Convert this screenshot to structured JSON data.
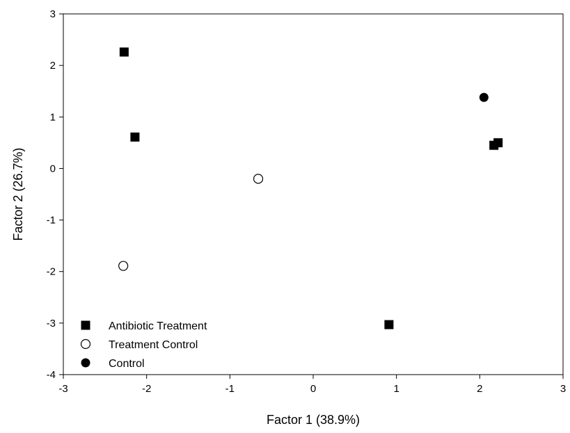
{
  "chart_data": {
    "type": "scatter",
    "xlabel": "Factor 1 (38.9%)",
    "ylabel": "Factor 2 (26.7%)",
    "xlim": [
      -3,
      3
    ],
    "ylim": [
      -4,
      3
    ],
    "xticks": [
      "-3",
      "-2",
      "-1",
      "0",
      "1",
      "2",
      "3"
    ],
    "yticks": [
      "3",
      "2",
      "1",
      "0",
      "-1",
      "-2",
      "-3",
      "-4"
    ],
    "legend_position": "bottom-left",
    "grid": false,
    "series": [
      {
        "name": "Antibiotic Treatment",
        "marker": "filled-square",
        "color": "#000000",
        "points": [
          {
            "x": -2.27,
            "y": 2.26
          },
          {
            "x": -2.14,
            "y": 0.61
          },
          {
            "x": 2.17,
            "y": 0.45
          },
          {
            "x": 2.22,
            "y": 0.5
          },
          {
            "x": 0.91,
            "y": -3.03
          }
        ]
      },
      {
        "name": "Treatment Control",
        "marker": "open-circle",
        "color": "#000000",
        "points": [
          {
            "x": -0.66,
            "y": -0.2
          },
          {
            "x": -2.28,
            "y": -1.89
          }
        ]
      },
      {
        "name": "Control",
        "marker": "filled-circle",
        "color": "#000000",
        "points": [
          {
            "x": 2.05,
            "y": 1.38
          }
        ]
      }
    ]
  }
}
